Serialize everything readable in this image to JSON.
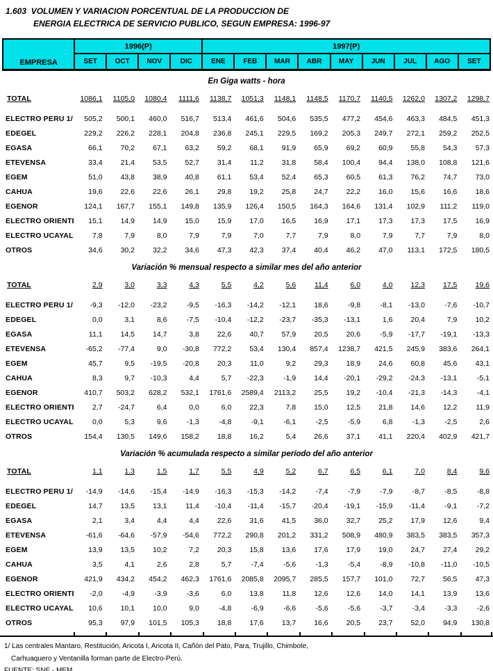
{
  "title": {
    "number": "1.603",
    "line1": "VOLUMEN Y VARIACION PORCENTUAL DE LA PRODUCCION DE",
    "line2": "ENERGIA ELECTRICA DE SERVICIO PUBLICO, SEGUN EMPRESA: 1996-97"
  },
  "header": {
    "empresa_label": "EMPRESA",
    "year_groups": [
      {
        "label": "1996(P)",
        "months": 4
      },
      {
        "label": "1997(P)",
        "months": 9
      }
    ],
    "months": [
      "SET",
      "OCT",
      "NOV",
      "DIC",
      "ENE",
      "FEB",
      "MAR",
      "ABR",
      "MAY",
      "JUN",
      "JUL",
      "AGO",
      "SET"
    ]
  },
  "sections": [
    {
      "heading": "En Giga watts - hora",
      "rows": [
        {
          "label": "TOTAL",
          "total": true,
          "values": [
            "1086,1",
            "1105,0",
            "1080,4",
            "1111,6",
            "1138,7",
            "1051,3",
            "1148,1",
            "1148,5",
            "1170,7",
            "1140,5",
            "1262,0",
            "1307,2",
            "1298,7"
          ]
        },
        {
          "label": "ELECTRO PERU 1/",
          "total": false,
          "values": [
            "505,2",
            "500,1",
            "460,0",
            "516,7",
            "513,4",
            "461,6",
            "504,6",
            "535,5",
            "477,2",
            "454,6",
            "463,3",
            "484,5",
            "451,3"
          ]
        },
        {
          "label": "EDEGEL",
          "total": false,
          "values": [
            "229,2",
            "226,2",
            "228,1",
            "204,8",
            "236,8",
            "245,1",
            "229,5",
            "169,2",
            "205,3",
            "249,7",
            "272,1",
            "259,2",
            "252,5"
          ]
        },
        {
          "label": "EGASA",
          "total": false,
          "values": [
            "66,1",
            "70,2",
            "67,1",
            "63,2",
            "59,2",
            "68,1",
            "91,9",
            "65,9",
            "69,2",
            "60,9",
            "55,8",
            "54,3",
            "57,3"
          ]
        },
        {
          "label": "ETEVENSA",
          "total": false,
          "values": [
            "33,4",
            "21,4",
            "53,5",
            "52,7",
            "31,4",
            "11,2",
            "31,8",
            "58,4",
            "100,4",
            "94,4",
            "138,0",
            "108,8",
            "121,6"
          ]
        },
        {
          "label": "EGEM",
          "total": false,
          "values": [
            "51,0",
            "43,8",
            "38,9",
            "40,8",
            "61,1",
            "53,4",
            "52,4",
            "65,3",
            "60,5",
            "61,3",
            "76,2",
            "74,7",
            "73,0"
          ]
        },
        {
          "label": "CAHUA",
          "total": false,
          "values": [
            "19,6",
            "22,6",
            "22,6",
            "26,1",
            "29,8",
            "19,2",
            "25,8",
            "24,7",
            "22,2",
            "16,0",
            "15,6",
            "16,6",
            "18,6"
          ]
        },
        {
          "label": "EGENOR",
          "total": false,
          "values": [
            "124,1",
            "167,7",
            "155,1",
            "149,8",
            "135,9",
            "126,4",
            "150,5",
            "164,3",
            "164,6",
            "131,4",
            "102,9",
            "111,2",
            "119,0"
          ]
        },
        {
          "label": "ELECTRO ORIENTE",
          "total": false,
          "values": [
            "15,1",
            "14,9",
            "14,9",
            "15,0",
            "15,9",
            "17,0",
            "16,5",
            "16,9",
            "17,1",
            "17,3",
            "17,3",
            "17,5",
            "16,9"
          ]
        },
        {
          "label": "ELECTRO UCAYALI",
          "total": false,
          "values": [
            "7,8",
            "7,9",
            "8,0",
            "7,9",
            "7,9",
            "7,0",
            "7,7",
            "7,9",
            "8,0",
            "7,9",
            "7,7",
            "7,9",
            "8,0"
          ]
        },
        {
          "label": "OTROS",
          "total": false,
          "values": [
            "34,6",
            "30,2",
            "32,2",
            "34,6",
            "47,3",
            "42,3",
            "37,4",
            "40,4",
            "46,2",
            "47,0",
            "113,1",
            "172,5",
            "180,5"
          ]
        }
      ]
    },
    {
      "heading": "Variación % mensual respecto a similar mes del año anterior",
      "rows": [
        {
          "label": "TOTAL",
          "total": true,
          "values": [
            "2,9",
            "3,0",
            "3,3",
            "4,3",
            "5,5",
            "4,2",
            "5,6",
            "11,4",
            "6,0",
            "4,0",
            "12,3",
            "17,5",
            "19,6"
          ]
        },
        {
          "label": "ELECTRO PERU 1/",
          "total": false,
          "values": [
            "-9,3",
            "-12,0",
            "-23,2",
            "-9,5",
            "-16,3",
            "-14,2",
            "-12,1",
            "18,6",
            "-9,8",
            "-8,1",
            "-13,0",
            "-7,6",
            "-10,7"
          ]
        },
        {
          "label": "EDEGEL",
          "total": false,
          "values": [
            "0,0",
            "3,1",
            "8,6",
            "-7,5",
            "-10,4",
            "-12,2",
            "-23,7",
            "-35,3",
            "-13,1",
            "1,6",
            "20,4",
            "7,9",
            "10,2"
          ]
        },
        {
          "label": "EGASA",
          "total": false,
          "values": [
            "11,1",
            "14,5",
            "14,7",
            "3,8",
            "22,6",
            "40,7",
            "57,9",
            "20,5",
            "20,6",
            "-5,9",
            "-17,7",
            "-19,1",
            "-13,3"
          ]
        },
        {
          "label": "ETEVENSA",
          "total": false,
          "values": [
            "-65,2",
            "-77,4",
            "9,0",
            "-30,8",
            "772,2",
            "53,4",
            "130,4",
            "857,4",
            "1238,7",
            "421,5",
            "245,9",
            "383,6",
            "264,1"
          ]
        },
        {
          "label": "EGEM",
          "total": false,
          "values": [
            "45,7",
            "9,5",
            "-19,5",
            "-20,8",
            "20,3",
            "11,0",
            "9,2",
            "29,3",
            "18,9",
            "24,6",
            "60,8",
            "45,6",
            "43,1"
          ]
        },
        {
          "label": "CAHUA",
          "total": false,
          "values": [
            "8,3",
            "9,7",
            "-10,3",
            "4,4",
            "5,7",
            "-22,3",
            "-1,9",
            "14,4",
            "-20,1",
            "-29,2",
            "-24,3",
            "-13,1",
            "-5,1"
          ]
        },
        {
          "label": "EGENOR",
          "total": false,
          "values": [
            "410,7",
            "503,2",
            "628,2",
            "532,1",
            "1761,6",
            "2589,4",
            "2113,2",
            "25,5",
            "19,2",
            "-10,4",
            "-21,3",
            "-14,3",
            "-4,1"
          ]
        },
        {
          "label": "ELECTRO ORIENTE",
          "total": false,
          "values": [
            "2,7",
            "-24,7",
            "6,4",
            "0,0",
            "6,0",
            "22,3",
            "7,8",
            "15,0",
            "12,5",
            "21,8",
            "14,6",
            "12,2",
            "11,9"
          ]
        },
        {
          "label": "ELECTRO UCAYALI",
          "total": false,
          "values": [
            "0,0",
            "5,3",
            "9,6",
            "-1,3",
            "-4,8",
            "-9,1",
            "-6,1",
            "-2,5",
            "-5,9",
            "6,8",
            "-1,3",
            "-2,5",
            "2,6"
          ]
        },
        {
          "label": "OTROS",
          "total": false,
          "values": [
            "154,4",
            "130,5",
            "149,6",
            "158,2",
            "18,8",
            "16,2",
            "5,4",
            "26,6",
            "37,1",
            "41,1",
            "220,4",
            "402,9",
            "421,7"
          ]
        }
      ]
    },
    {
      "heading": "Variación % acumulada respecto a similar período del año anterior",
      "rows": [
        {
          "label": "TOTAL",
          "total": true,
          "values": [
            "1,1",
            "1,3",
            "1,5",
            "1,7",
            "5,5",
            "4,9",
            "5,2",
            "6,7",
            "6,5",
            "6,1",
            "7,0",
            "8,4",
            "9,6"
          ]
        },
        {
          "label": "ELECTRO PERU 1/",
          "total": false,
          "values": [
            "-14,9",
            "-14,6",
            "-15,4",
            "-14,9",
            "-16,3",
            "-15,3",
            "-14,2",
            "-7,4",
            "-7,9",
            "-7,9",
            "-8,7",
            "-8,5",
            "-8,8"
          ]
        },
        {
          "label": "EDEGEL",
          "total": false,
          "values": [
            "14,7",
            "13,5",
            "13,1",
            "11,4",
            "-10,4",
            "-11,4",
            "-15,7",
            "-20,4",
            "-19,1",
            "-15,9",
            "-11,4",
            "-9,1",
            "-7,2"
          ]
        },
        {
          "label": "EGASA",
          "total": false,
          "values": [
            "2,1",
            "3,4",
            "4,4",
            "4,4",
            "22,6",
            "31,6",
            "41,5",
            "36,0",
            "32,7",
            "25,2",
            "17,9",
            "12,6",
            "9,4"
          ]
        },
        {
          "label": "ETEVENSA",
          "total": false,
          "values": [
            "-61,6",
            "-64,6",
            "-57,9",
            "-54,6",
            "772,2",
            "290,8",
            "201,2",
            "331,2",
            "508,9",
            "480,9",
            "383,5",
            "383,5",
            "357,3"
          ]
        },
        {
          "label": "EGEM",
          "total": false,
          "values": [
            "13,9",
            "13,5",
            "10,2",
            "7,2",
            "20,3",
            "15,8",
            "13,6",
            "17,6",
            "17,9",
            "19,0",
            "24,7",
            "27,4",
            "29,2"
          ]
        },
        {
          "label": "CAHUA",
          "total": false,
          "values": [
            "3,5",
            "4,1",
            "2,6",
            "2,8",
            "5,7",
            "-7,4",
            "-5,6",
            "-1,3",
            "-5,4",
            "-8,9",
            "-10,8",
            "-11,0",
            "-10,5"
          ]
        },
        {
          "label": "EGENOR",
          "total": false,
          "values": [
            "421,9",
            "434,2",
            "454,2",
            "462,3",
            "1761,6",
            "2085,8",
            "2095,7",
            "285,5",
            "157,7",
            "101,0",
            "72,7",
            "56,5",
            "47,3"
          ]
        },
        {
          "label": "ELECTRO ORIENTE",
          "total": false,
          "values": [
            "-2,0",
            "-4,9",
            "-3,9",
            "-3,6",
            "6,0",
            "13,8",
            "11,8",
            "12,6",
            "12,6",
            "14,0",
            "14,1",
            "13,9",
            "13,6"
          ]
        },
        {
          "label": "ELECTRO UCAYALI",
          "total": false,
          "values": [
            "10,6",
            "10,1",
            "10,0",
            "9,0",
            "-4,8",
            "-6,9",
            "-6,6",
            "-5,6",
            "-5,6",
            "-3,7",
            "-3,4",
            "-3,3",
            "-2,6"
          ]
        },
        {
          "label": "OTROS",
          "total": false,
          "values": [
            "95,3",
            "97,9",
            "101,5",
            "105,3",
            "18,8",
            "17,6",
            "13,7",
            "16,6",
            "20,5",
            "23,7",
            "52,0",
            "94,9",
            "130,8"
          ]
        }
      ]
    }
  ],
  "footnotes": [
    "1/ Las centrales  Mantaro, Restitución,  Aricota I,  Aricota II, Cañón del Pato, Para, Trujillo, Chimbote,",
    "Carhuaquero y Ventanilla forman parte de Electro-Perú.",
    "FUENTE: SNE - MEM"
  ],
  "colors": {
    "header_bg": "#00E1EA",
    "border": "#000000"
  }
}
